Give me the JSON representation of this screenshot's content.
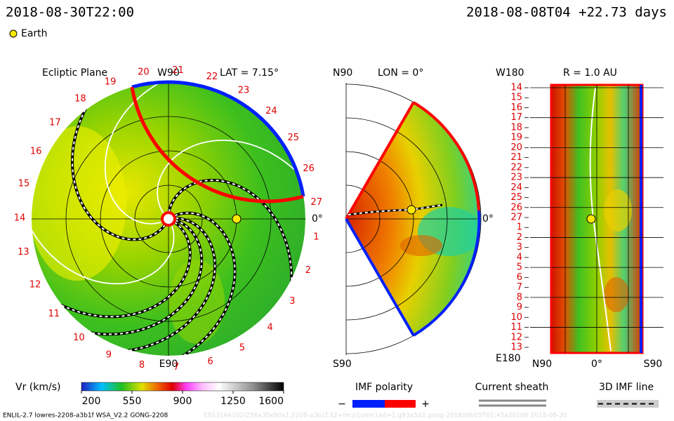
{
  "header": {
    "time": "2018-08-30T22:00",
    "run": "2018-08-08T04 +22.73 days",
    "legend": "Earth"
  },
  "ecliptic": {
    "title": "Ecliptic Plane",
    "top": "W90",
    "lat": "LAT = 7.15°",
    "bottom": "E90",
    "right": "0°",
    "longitudes": [
      1,
      2,
      3,
      4,
      5,
      6,
      7,
      8,
      9,
      10,
      11,
      12,
      13,
      14,
      15,
      16,
      17,
      18,
      19,
      20,
      21,
      22,
      23,
      24,
      25,
      26,
      27
    ]
  },
  "meridional": {
    "top": "N90",
    "lon": "LON = 0°",
    "bottom": "S90",
    "right": "0°"
  },
  "radial": {
    "top": "W180",
    "title": "R = 1.0 AU",
    "bottom": "E180",
    "x_labels": [
      "N90",
      "0°",
      "S90"
    ],
    "y_labels": [
      14,
      15,
      16,
      17,
      18,
      19,
      20,
      21,
      22,
      23,
      24,
      25,
      26,
      27,
      1,
      2,
      3,
      4,
      5,
      6,
      7,
      8,
      9,
      10,
      11,
      12,
      13
    ]
  },
  "colorbar": {
    "label": "Vr (km/s)",
    "ticks": [
      200,
      550,
      900,
      1250,
      1600
    ]
  },
  "imf_polarity": {
    "title": "IMF polarity",
    "minus": "−",
    "plus": "+"
  },
  "current_sheath": {
    "title": "Current sheath"
  },
  "imf_line": {
    "title": "3D IMF line"
  },
  "footer": {
    "left": "ENLIL-2.7 lowres-2208-a3b1f WSA_V2.2 GONG-2208",
    "right": "E8S3164102/256x30x90x1.2208-a3b1f.32+mcp1umn1ed=1.g93a5d2.gong-2018/08/05T01:45a20100   2018-08-30"
  }
}
